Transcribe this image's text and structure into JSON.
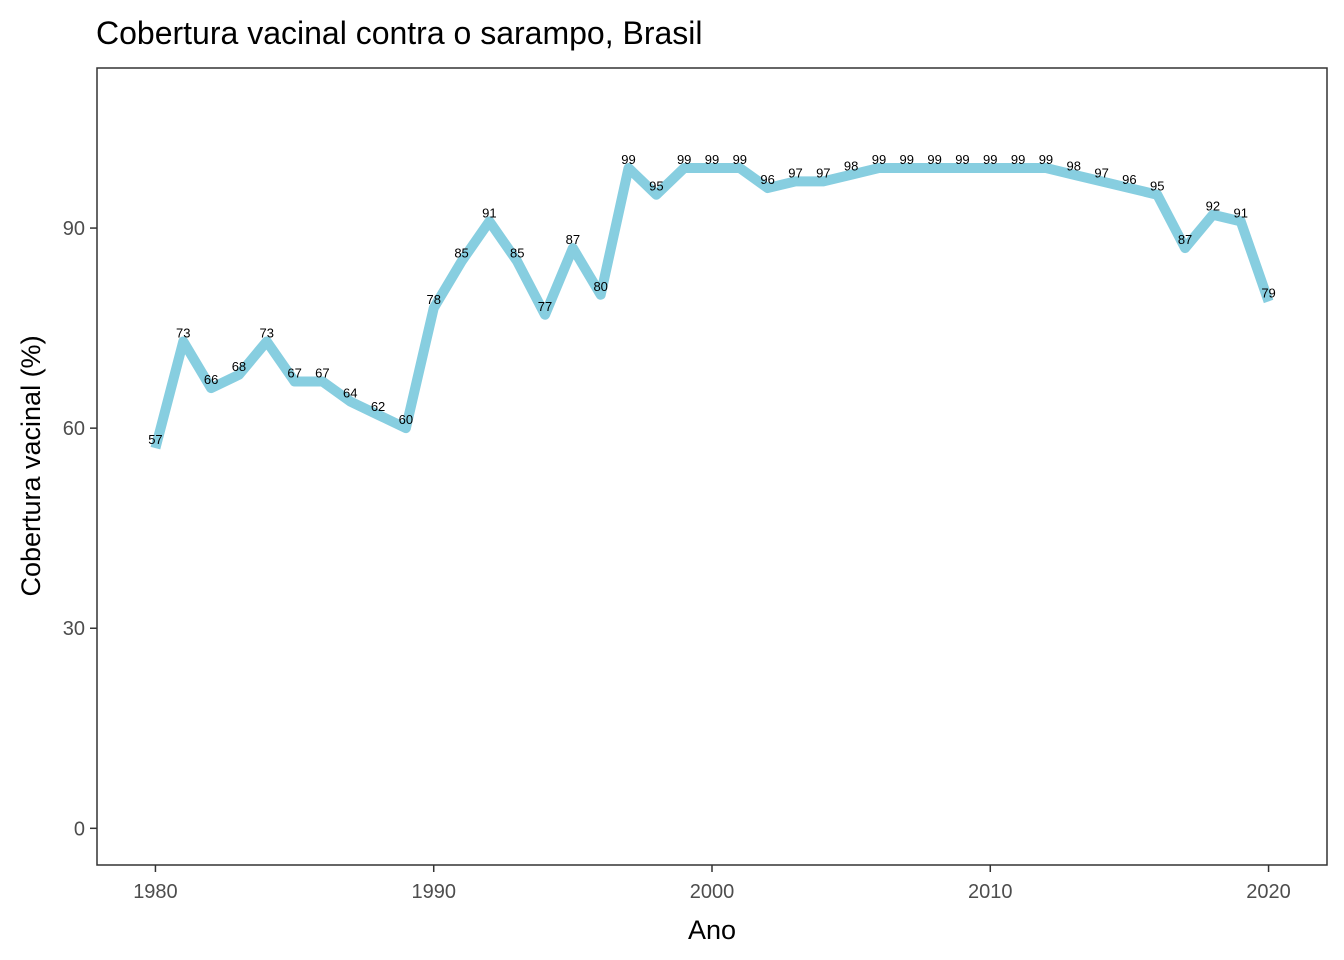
{
  "chart_data": {
    "type": "line",
    "title": "Cobertura vacinal contra o sarampo, Brasil",
    "xlabel": "Ano",
    "ylabel": "Cobertura vacinal (%)",
    "xlim": [
      1977.9,
      2022.1
    ],
    "ylim": [
      -5.5,
      114.0
    ],
    "xticks": [
      1980,
      1990,
      2000,
      2010,
      2020
    ],
    "xtick_labels": [
      "1980",
      "1990",
      "2000",
      "2010",
      "2020"
    ],
    "yticks": [
      0,
      30,
      60,
      90
    ],
    "ytick_labels": [
      "0",
      "30",
      "60",
      "90"
    ],
    "grid": false,
    "legend": "none",
    "line_color": "#87CEE0",
    "series": [
      {
        "x": [
          1980,
          1981,
          1982,
          1983,
          1984,
          1985,
          1986,
          1987,
          1988,
          1989,
          1990,
          1991,
          1992,
          1993,
          1994,
          1995,
          1996,
          1997,
          1998,
          1999,
          2000,
          2001,
          2002,
          2003,
          2004,
          2005,
          2006,
          2007,
          2008,
          2009,
          2010,
          2011,
          2012,
          2013,
          2014,
          2015,
          2016,
          2017,
          2018,
          2019,
          2020
        ],
        "y": [
          57,
          73,
          66,
          68,
          73,
          67,
          67,
          64,
          62,
          60,
          78,
          85,
          91,
          85,
          77,
          87,
          80,
          99,
          95,
          99,
          99,
          99,
          96,
          97,
          97,
          98,
          99,
          99,
          99,
          99,
          99,
          99,
          99,
          98,
          97,
          96,
          95,
          87,
          92,
          91,
          79
        ],
        "labels": [
          "57",
          "73",
          "66",
          "68",
          "73",
          "67",
          "67",
          "64",
          "62",
          "60",
          "78",
          "85",
          "91",
          "85",
          "77",
          "87",
          "80",
          "99",
          "95",
          "99",
          "99",
          "99",
          "96",
          "97",
          "97",
          "98",
          "99",
          "99",
          "99",
          "99",
          "99",
          "99",
          "99",
          "98",
          "97",
          "96",
          "95",
          "87",
          "92",
          "91",
          "79"
        ]
      }
    ]
  }
}
